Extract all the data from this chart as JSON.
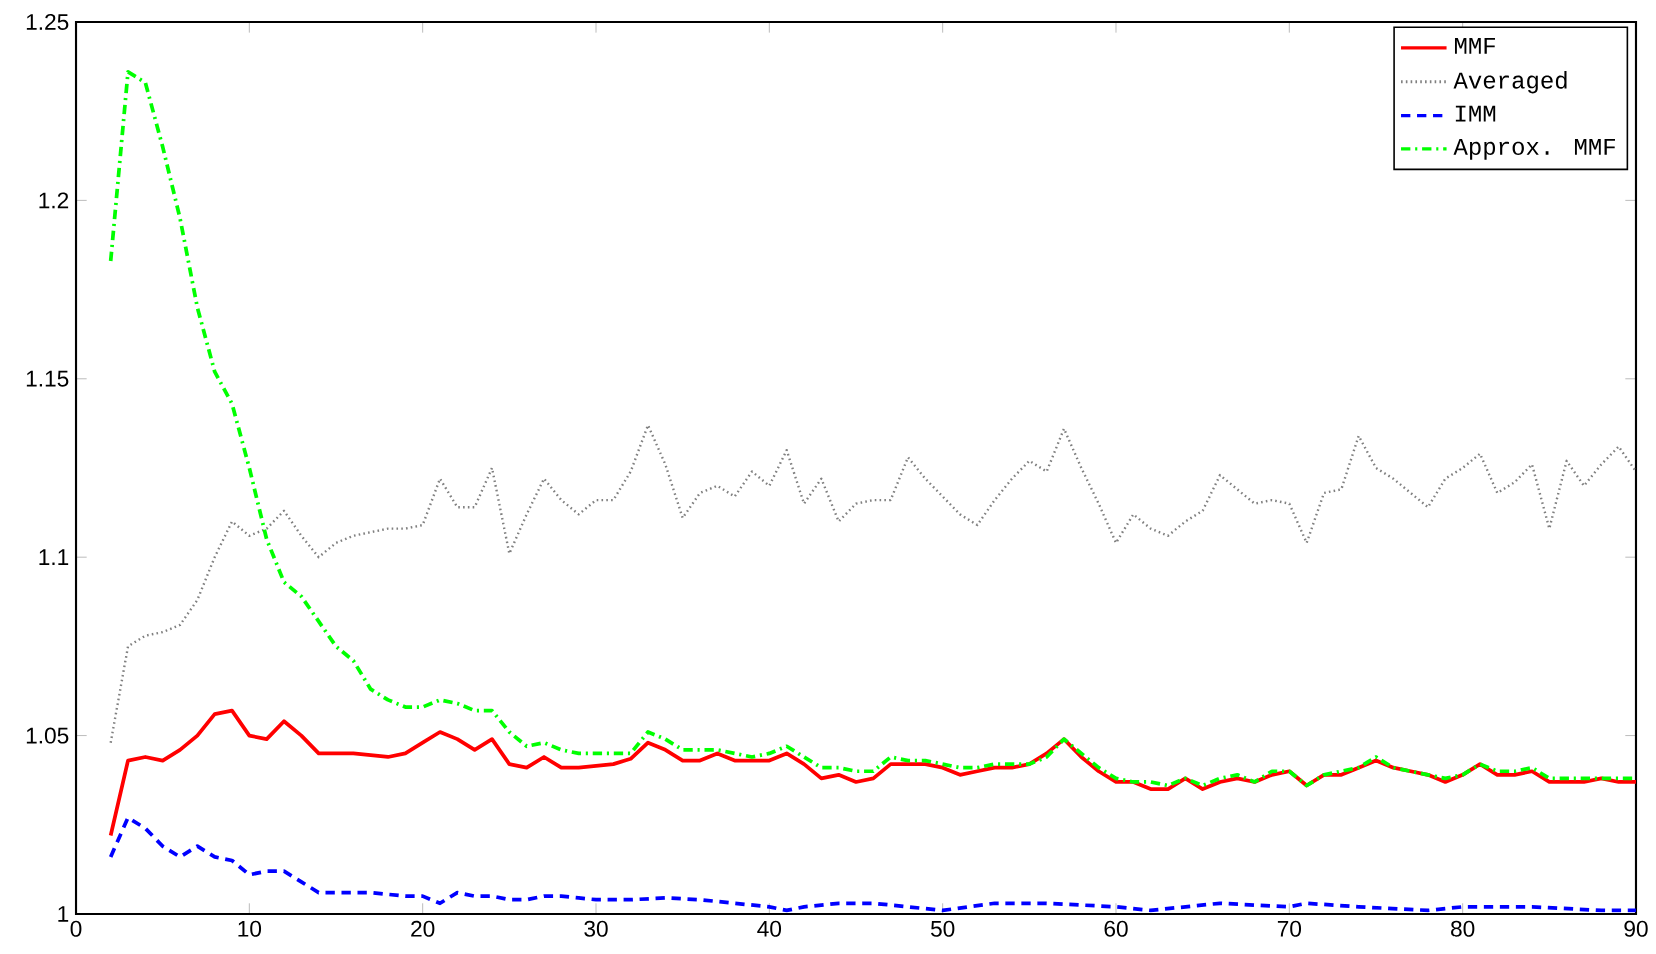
{
  "chart_data": {
    "type": "line",
    "xlim": [
      0,
      90
    ],
    "ylim": [
      1,
      1.25
    ],
    "xticks": [
      0,
      10,
      20,
      30,
      40,
      50,
      60,
      70,
      80,
      90
    ],
    "yticks": [
      1,
      1.05,
      1.1,
      1.15,
      1.2,
      1.25
    ],
    "grid": false,
    "legend": "top right",
    "marker": "none",
    "series": [
      {
        "name": "MMF",
        "color": "#ff0000",
        "line_style": "solid",
        "x": [
          2,
          3,
          4,
          5,
          6,
          7,
          8,
          9,
          10,
          11,
          12,
          13,
          14,
          15,
          16,
          17,
          18,
          19,
          20,
          21,
          22,
          23,
          24,
          25,
          26,
          27,
          28,
          29,
          30,
          31,
          32,
          33,
          34,
          35,
          36,
          37,
          38,
          39,
          40,
          41,
          42,
          43,
          44,
          45,
          46,
          47,
          48,
          49,
          50,
          51,
          52,
          53,
          54,
          55,
          56,
          57,
          58,
          59,
          60,
          61,
          62,
          63,
          64,
          65,
          66,
          67,
          68,
          69,
          70,
          71,
          72,
          73,
          74,
          75,
          76,
          77,
          78,
          79,
          80,
          81,
          82,
          83,
          84,
          85,
          86,
          87,
          88,
          89,
          90
        ],
        "values": [
          1.022,
          1.043,
          1.044,
          1.043,
          1.046,
          1.05,
          1.056,
          1.057,
          1.05,
          1.049,
          1.054,
          1.05,
          1.045,
          1.045,
          1.045,
          1.0445,
          1.044,
          1.045,
          1.048,
          1.051,
          1.049,
          1.046,
          1.049,
          1.042,
          1.041,
          1.044,
          1.041,
          1.041,
          1.0415,
          1.042,
          1.0435,
          1.048,
          1.046,
          1.043,
          1.043,
          1.045,
          1.043,
          1.043,
          1.043,
          1.045,
          1.042,
          1.038,
          1.039,
          1.037,
          1.038,
          1.042,
          1.042,
          1.042,
          1.041,
          1.039,
          1.04,
          1.041,
          1.041,
          1.042,
          1.045,
          1.049,
          1.044,
          1.04,
          1.037,
          1.037,
          1.035,
          1.035,
          1.038,
          1.035,
          1.037,
          1.038,
          1.037,
          1.039,
          1.04,
          1.036,
          1.039,
          1.039,
          1.041,
          1.043,
          1.041,
          1.04,
          1.039,
          1.037,
          1.039,
          1.042,
          1.039,
          1.039,
          1.04,
          1.037,
          1.037,
          1.037,
          1.038,
          1.037,
          1.037
        ]
      },
      {
        "name": "Averaged",
        "color": "#808080",
        "line_style": "dotted",
        "x": [
          2,
          3,
          4,
          5,
          6,
          7,
          8,
          9,
          10,
          11,
          12,
          13,
          14,
          15,
          16,
          17,
          18,
          19,
          20,
          21,
          22,
          23,
          24,
          25,
          26,
          27,
          28,
          29,
          30,
          31,
          32,
          33,
          34,
          35,
          36,
          37,
          38,
          39,
          40,
          41,
          42,
          43,
          44,
          45,
          46,
          47,
          48,
          49,
          50,
          51,
          52,
          53,
          54,
          55,
          56,
          57,
          58,
          59,
          60,
          61,
          62,
          63,
          64,
          65,
          66,
          67,
          68,
          69,
          70,
          71,
          72,
          73,
          74,
          75,
          76,
          77,
          78,
          79,
          80,
          81,
          82,
          83,
          84,
          85,
          86,
          87,
          88,
          89,
          90
        ],
        "values": [
          1.048,
          1.075,
          1.078,
          1.079,
          1.081,
          1.088,
          1.1,
          1.11,
          1.106,
          1.108,
          1.113,
          1.106,
          1.1,
          1.104,
          1.106,
          1.107,
          1.108,
          1.108,
          1.109,
          1.122,
          1.114,
          1.114,
          1.125,
          1.101,
          1.112,
          1.122,
          1.116,
          1.112,
          1.116,
          1.116,
          1.124,
          1.137,
          1.126,
          1.111,
          1.118,
          1.12,
          1.117,
          1.124,
          1.12,
          1.13,
          1.115,
          1.122,
          1.11,
          1.115,
          1.116,
          1.116,
          1.128,
          1.122,
          1.117,
          1.112,
          1.109,
          1.116,
          1.122,
          1.127,
          1.124,
          1.136,
          1.125,
          1.115,
          1.104,
          1.112,
          1.108,
          1.106,
          1.11,
          1.113,
          1.123,
          1.119,
          1.115,
          1.116,
          1.115,
          1.104,
          1.118,
          1.119,
          1.134,
          1.125,
          1.122,
          1.118,
          1.114,
          1.122,
          1.125,
          1.129,
          1.118,
          1.121,
          1.126,
          1.108,
          1.127,
          1.12,
          1.126,
          1.131,
          1.124
        ]
      },
      {
        "name": "IMM",
        "color": "#0000ff",
        "line_style": "dashed",
        "x": [
          2,
          3,
          4,
          5,
          6,
          7,
          8,
          9,
          10,
          11,
          12,
          13,
          14,
          15,
          16,
          17,
          18,
          19,
          20,
          21,
          22,
          23,
          24,
          25,
          26,
          27,
          28,
          29,
          30,
          32,
          34,
          36,
          38,
          40,
          41,
          42,
          44,
          46,
          48,
          50,
          53,
          56,
          60,
          62,
          66,
          70,
          71,
          74,
          78,
          80,
          84,
          88,
          90
        ],
        "values": [
          1.016,
          1.027,
          1.024,
          1.019,
          1.016,
          1.019,
          1.016,
          1.015,
          1.011,
          1.012,
          1.012,
          1.009,
          1.006,
          1.006,
          1.006,
          1.006,
          1.0055,
          1.005,
          1.005,
          1.003,
          1.006,
          1.005,
          1.005,
          1.004,
          1.004,
          1.005,
          1.005,
          1.0045,
          1.004,
          1.004,
          1.0045,
          1.004,
          1.003,
          1.002,
          1.001,
          1.002,
          1.003,
          1.003,
          1.002,
          1.001,
          1.003,
          1.003,
          1.002,
          1.001,
          1.003,
          1.002,
          1.003,
          1.002,
          1.001,
          1.002,
          1.002,
          1.001,
          1.001
        ]
      },
      {
        "name": "Approx. MMF",
        "color": "#00ff00",
        "line_style": "dashdot",
        "x": [
          2,
          3,
          4,
          5,
          6,
          7,
          8,
          9,
          10,
          11,
          12,
          13,
          14,
          15,
          16,
          17,
          18,
          19,
          20,
          21,
          22,
          23,
          24,
          25,
          26,
          27,
          28,
          29,
          30,
          31,
          32,
          33,
          34,
          35,
          36,
          37,
          38,
          39,
          40,
          41,
          42,
          43,
          44,
          45,
          46,
          47,
          48,
          49,
          50,
          51,
          52,
          53,
          54,
          55,
          56,
          57,
          58,
          59,
          60,
          61,
          62,
          63,
          64,
          65,
          66,
          67,
          68,
          69,
          70,
          71,
          72,
          73,
          74,
          75,
          76,
          77,
          78,
          79,
          80,
          81,
          82,
          83,
          84,
          85,
          86,
          87,
          88,
          89,
          90
        ],
        "values": [
          1.183,
          1.236,
          1.233,
          1.215,
          1.195,
          1.17,
          1.152,
          1.143,
          1.125,
          1.105,
          1.093,
          1.089,
          1.082,
          1.075,
          1.071,
          1.063,
          1.06,
          1.058,
          1.058,
          1.06,
          1.059,
          1.057,
          1.057,
          1.051,
          1.047,
          1.048,
          1.046,
          1.045,
          1.045,
          1.045,
          1.045,
          1.051,
          1.049,
          1.046,
          1.046,
          1.046,
          1.045,
          1.044,
          1.045,
          1.047,
          1.044,
          1.041,
          1.041,
          1.04,
          1.04,
          1.044,
          1.043,
          1.043,
          1.042,
          1.041,
          1.041,
          1.042,
          1.042,
          1.042,
          1.044,
          1.049,
          1.045,
          1.041,
          1.038,
          1.037,
          1.037,
          1.036,
          1.038,
          1.036,
          1.038,
          1.039,
          1.037,
          1.04,
          1.04,
          1.036,
          1.039,
          1.04,
          1.041,
          1.044,
          1.041,
          1.04,
          1.039,
          1.038,
          1.039,
          1.042,
          1.04,
          1.04,
          1.041,
          1.038,
          1.038,
          1.038,
          1.038,
          1.038,
          1.038
        ]
      }
    ]
  }
}
